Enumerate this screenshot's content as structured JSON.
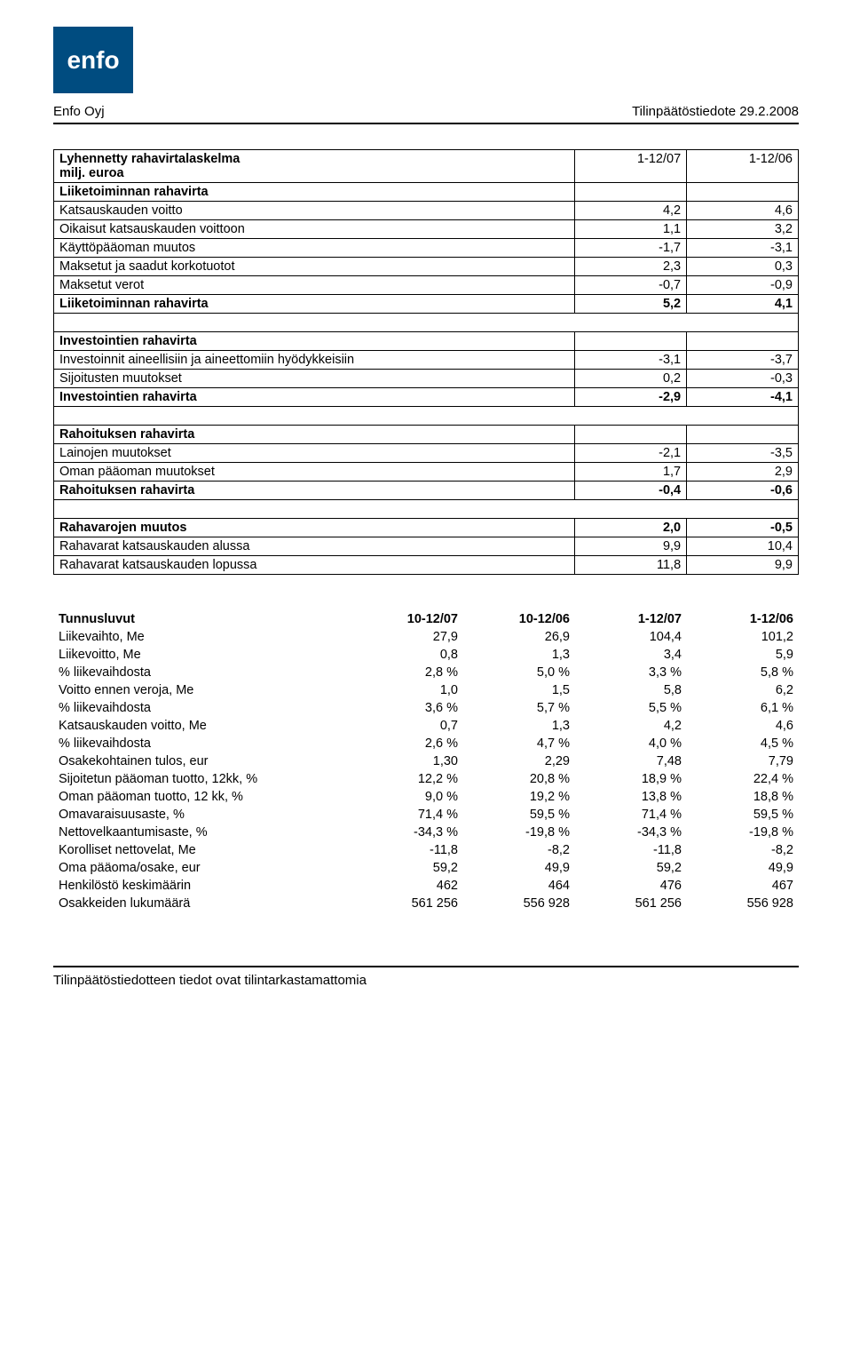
{
  "header": {
    "logo_text": "enfo",
    "company": "Enfo Oyj",
    "doc_title": "Tilinpäätöstiedote 29.2.2008"
  },
  "table1": {
    "title_line1": "Lyhennetty rahavirtalaskelma",
    "title_line2": "milj. euroa",
    "col1": "1-12/07",
    "col2": "1-12/06",
    "sections": [
      {
        "type": "header",
        "label": "Liiketoiminnan rahavirta",
        "v1": "",
        "v2": ""
      },
      {
        "type": "row",
        "label": "Katsauskauden voitto",
        "v1": "4,2",
        "v2": "4,6"
      },
      {
        "type": "row",
        "label": "Oikaisut katsauskauden voittoon",
        "v1": "1,1",
        "v2": "3,2"
      },
      {
        "type": "row",
        "label": "Käyttöpääoman muutos",
        "v1": "-1,7",
        "v2": "-3,1"
      },
      {
        "type": "row",
        "label": "Maksetut ja saadut korkotuotot",
        "v1": "2,3",
        "v2": "0,3"
      },
      {
        "type": "row",
        "label": "Maksetut verot",
        "v1": "-0,7",
        "v2": "-0,9"
      },
      {
        "type": "boldrow",
        "label": "Liiketoiminnan rahavirta",
        "v1": "5,2",
        "v2": "4,1"
      },
      {
        "type": "blank"
      },
      {
        "type": "header",
        "label": "Investointien rahavirta",
        "v1": "",
        "v2": ""
      },
      {
        "type": "row",
        "label": "Investoinnit aineellisiin ja aineettomiin hyödykkeisiin",
        "v1": "-3,1",
        "v2": "-3,7"
      },
      {
        "type": "row",
        "label": "Sijoitusten muutokset",
        "v1": "0,2",
        "v2": "-0,3"
      },
      {
        "type": "boldrow",
        "label": "Investointien rahavirta",
        "v1": "-2,9",
        "v2": "-4,1"
      },
      {
        "type": "blank"
      },
      {
        "type": "header",
        "label": "Rahoituksen rahavirta",
        "v1": "",
        "v2": ""
      },
      {
        "type": "row",
        "label": "Lainojen muutokset",
        "v1": "-2,1",
        "v2": "-3,5"
      },
      {
        "type": "row",
        "label": "Oman pääoman muutokset",
        "v1": "1,7",
        "v2": "2,9"
      },
      {
        "type": "boldrow",
        "label": "Rahoituksen rahavirta",
        "v1": "-0,4",
        "v2": "-0,6"
      },
      {
        "type": "blank"
      },
      {
        "type": "boldrow",
        "label": "Rahavarojen muutos",
        "v1": "2,0",
        "v2": "-0,5"
      },
      {
        "type": "row",
        "label": "Rahavarat katsauskauden alussa",
        "v1": "9,9",
        "v2": "10,4"
      },
      {
        "type": "row",
        "label": "Rahavarat katsauskauden lopussa",
        "v1": "11,8",
        "v2": "9,9"
      }
    ]
  },
  "table2": {
    "title": "Tunnusluvut",
    "cols": [
      "10-12/07",
      "10-12/06",
      "1-12/07",
      "1-12/06"
    ],
    "rows": [
      {
        "label": "Liikevaihto, Me",
        "v": [
          "27,9",
          "26,9",
          "104,4",
          "101,2"
        ]
      },
      {
        "label": "Liikevoitto, Me",
        "v": [
          "0,8",
          "1,3",
          "3,4",
          "5,9"
        ]
      },
      {
        "label": "% liikevaihdosta",
        "v": [
          "2,8 %",
          "5,0 %",
          "3,3 %",
          "5,8 %"
        ]
      },
      {
        "label": "Voitto ennen veroja, Me",
        "v": [
          "1,0",
          "1,5",
          "5,8",
          "6,2"
        ]
      },
      {
        "label": "% liikevaihdosta",
        "v": [
          "3,6 %",
          "5,7 %",
          "5,5 %",
          "6,1 %"
        ]
      },
      {
        "label": "Katsauskauden voitto, Me",
        "v": [
          "0,7",
          "1,3",
          "4,2",
          "4,6"
        ]
      },
      {
        "label": "% liikevaihdosta",
        "v": [
          "2,6 %",
          "4,7 %",
          "4,0 %",
          "4,5 %"
        ]
      },
      {
        "label": "Osakekohtainen tulos, eur",
        "v": [
          "1,30",
          "2,29",
          "7,48",
          "7,79"
        ]
      },
      {
        "label": "Sijoitetun pääoman tuotto, 12kk, %",
        "v": [
          "12,2 %",
          "20,8 %",
          "18,9 %",
          "22,4 %"
        ]
      },
      {
        "label": "Oman pääoman tuotto, 12 kk, %",
        "v": [
          "9,0 %",
          "19,2 %",
          "13,8 %",
          "18,8 %"
        ]
      },
      {
        "label": "Omavaraisuusaste, %",
        "v": [
          "71,4 %",
          "59,5 %",
          "71,4 %",
          "59,5 %"
        ]
      },
      {
        "label": "Nettovelkaantumisaste, %",
        "v": [
          "-34,3 %",
          "-19,8 %",
          "-34,3 %",
          "-19,8 %"
        ]
      },
      {
        "label": "Korolliset nettovelat, Me",
        "v": [
          "-11,8",
          "-8,2",
          "-11,8",
          "-8,2"
        ]
      },
      {
        "label": "Oma pääoma/osake, eur",
        "v": [
          "59,2",
          "49,9",
          "59,2",
          "49,9"
        ]
      },
      {
        "label": "Henkilöstö keskimäärin",
        "v": [
          "462",
          "464",
          "476",
          "467"
        ]
      },
      {
        "label": "Osakkeiden lukumäärä",
        "v": [
          "561 256",
          "556 928",
          "561 256",
          "556 928"
        ]
      }
    ]
  },
  "footer": {
    "text": "Tilinpäätöstiedotteen tiedot ovat tilintarkastamattomia"
  }
}
